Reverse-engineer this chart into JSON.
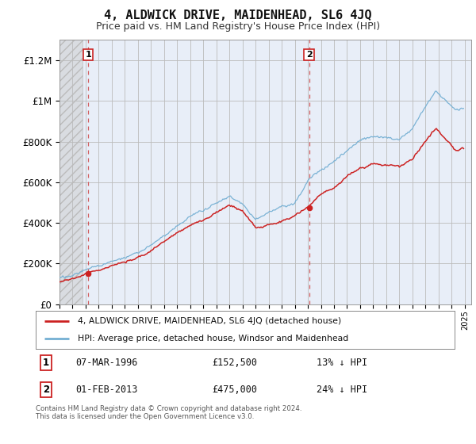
{
  "title": "4, ALDWICK DRIVE, MAIDENHEAD, SL6 4JQ",
  "subtitle": "Price paid vs. HM Land Registry's House Price Index (HPI)",
  "title_fontsize": 11,
  "subtitle_fontsize": 9,
  "background_color": "#ffffff",
  "plot_bg_color": "#e8eef8",
  "ylabel_color": "#222222",
  "ylim": [
    0,
    1300000
  ],
  "yticks": [
    0,
    200000,
    400000,
    600000,
    800000,
    1000000,
    1200000
  ],
  "ytick_labels": [
    "£0",
    "£200K",
    "£400K",
    "£600K",
    "£800K",
    "£1M",
    "£1.2M"
  ],
  "purchase1": {
    "date_num": 1996.19,
    "price": 152500,
    "label": "1"
  },
  "purchase2": {
    "date_num": 2013.09,
    "price": 475000,
    "label": "2"
  },
  "legend_line1": "4, ALDWICK DRIVE, MAIDENHEAD, SL6 4JQ (detached house)",
  "legend_line2": "HPI: Average price, detached house, Windsor and Maidenhead",
  "annotation1_date": "07-MAR-1996",
  "annotation1_price": "£152,500",
  "annotation1_pct": "13% ↓ HPI",
  "annotation2_date": "01-FEB-2013",
  "annotation2_price": "£475,000",
  "annotation2_pct": "24% ↓ HPI",
  "footer": "Contains HM Land Registry data © Crown copyright and database right 2024.\nThis data is licensed under the Open Government Licence v3.0.",
  "hpi_color": "#74afd3",
  "price_color": "#cc2222",
  "dashed_color": "#cc4444",
  "xlim_start": 1994.0,
  "xlim_end": 2025.5,
  "hatch_end": 1995.75,
  "hatch_region_start": 1994.0
}
